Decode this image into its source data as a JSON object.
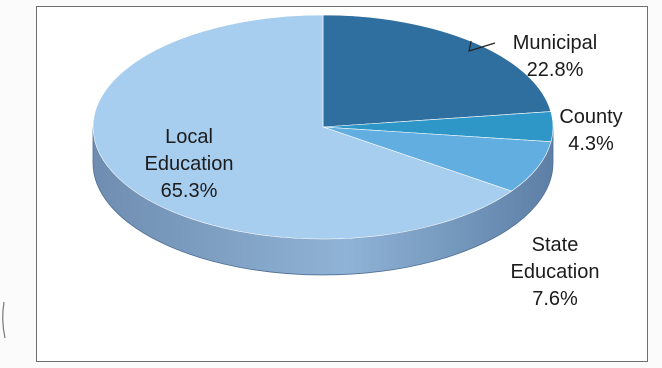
{
  "chart_data": {
    "type": "pie",
    "style": "3d",
    "slices": [
      {
        "label_lines": [
          "Municipal",
          "22.8%"
        ],
        "category": "Municipal",
        "value": 22.8,
        "color": "#2f6f9f"
      },
      {
        "label_lines": [
          "County",
          "4.3%"
        ],
        "category": "County",
        "value": 4.3,
        "color": "#2e97c8"
      },
      {
        "label_lines": [
          "State",
          "Education",
          "7.6%"
        ],
        "category": "State Education",
        "value": 7.6,
        "color": "#62aee0"
      },
      {
        "label_lines": [
          "Local",
          "Education",
          "65.3%"
        ],
        "category": "Local Education",
        "value": 65.3,
        "color": "#a7cdef"
      }
    ],
    "start_angle_deg": 90,
    "direction": "clockwise",
    "legend": "none",
    "data_labels": "category and percentage"
  }
}
